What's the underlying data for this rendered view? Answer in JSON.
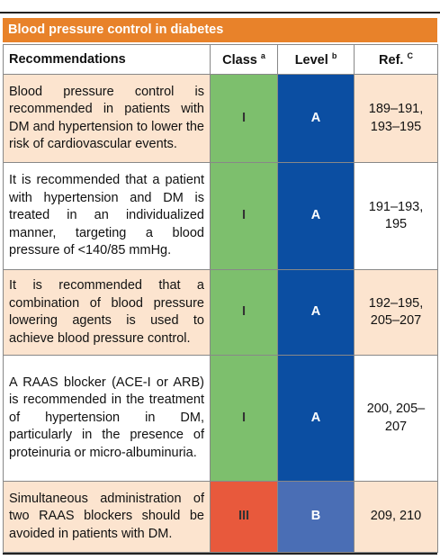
{
  "header": {
    "title": "Blood pressure control in diabetes"
  },
  "table": {
    "columns": [
      {
        "label": "Recommendations"
      },
      {
        "label": "Class",
        "sup": "a"
      },
      {
        "label": "Level",
        "sup": "b"
      },
      {
        "label": "Ref.",
        "sup": "C"
      }
    ],
    "rows": [
      [
        "Blood pressure control is recommended in patients with DM and hypertension to lower the risk of cardiovascular events.",
        "I",
        "A",
        "189–191, 193–195"
      ],
      [
        "It is recommended that a patient with hypertension and DM is treated in an individualized manner, targeting a blood pressure of <140/85 mmHg.",
        "I",
        "A",
        "191–193, 195"
      ],
      [
        "It is recommended that a combination of blood pressure lowering agents is used to achieve blood pressure control.",
        "I",
        "A",
        "192–195, 205–207"
      ],
      [
        "A RAAS blocker (ACE-I or ARB) is recommended in the treatment of hypertension in DM, particularly in the presence of proteinuria or micro-albuminuria.",
        "I",
        "A",
        "200, 205–207"
      ],
      [
        "Simultaneous administration of two RAAS blockers should be avoided in patients with DM.",
        "III",
        "B",
        "209, 210"
      ]
    ]
  }
}
